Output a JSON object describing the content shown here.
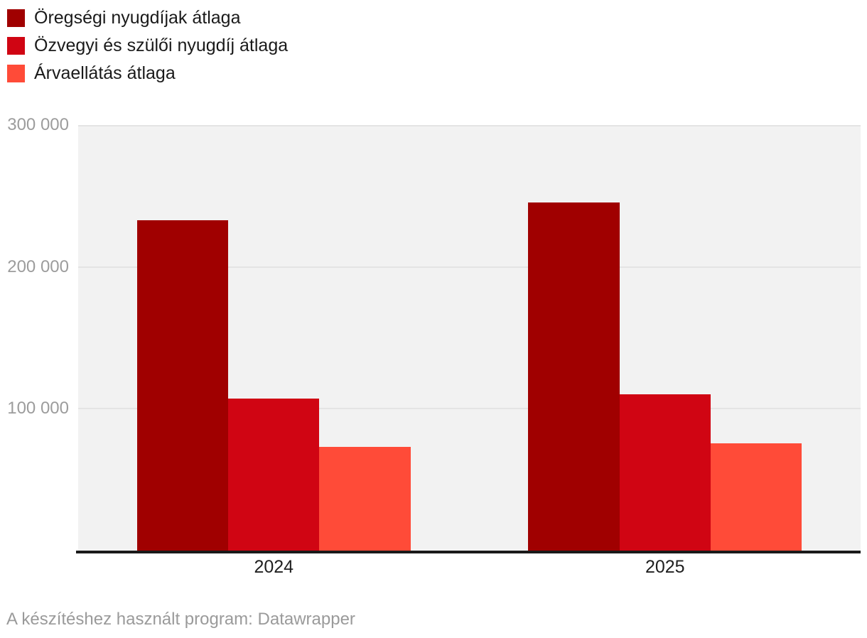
{
  "chart_data": {
    "type": "bar",
    "categories": [
      "2024",
      "2025"
    ],
    "series": [
      {
        "name": "Öregségi nyugdíjak átlaga",
        "color": "#a00000",
        "values": [
          233000,
          245200
        ]
      },
      {
        "name": "Özvegyi és szülői nyugdíj átlaga",
        "color": "#d00513",
        "values": [
          107300,
          110000
        ]
      },
      {
        "name": "Árvaellátás átlaga",
        "color": "#ff4b38",
        "values": [
          73200,
          75600
        ]
      }
    ],
    "title": "",
    "xlabel": "",
    "ylabel": "",
    "ylim": [
      0,
      300000
    ],
    "yticks": [
      {
        "value": 300000,
        "label": "300 000"
      },
      {
        "value": 200000,
        "label": "200 000"
      },
      {
        "value": 100000,
        "label": "100 000"
      }
    ],
    "grid": "horizontal",
    "legend_position": "top-left",
    "plot_background": "#f2f2f2",
    "gridline_color": "#e4e4e4",
    "axis_color": "#1a1a1a"
  },
  "footer": {
    "attribution": "A készítéshez használt program: Datawrapper"
  }
}
